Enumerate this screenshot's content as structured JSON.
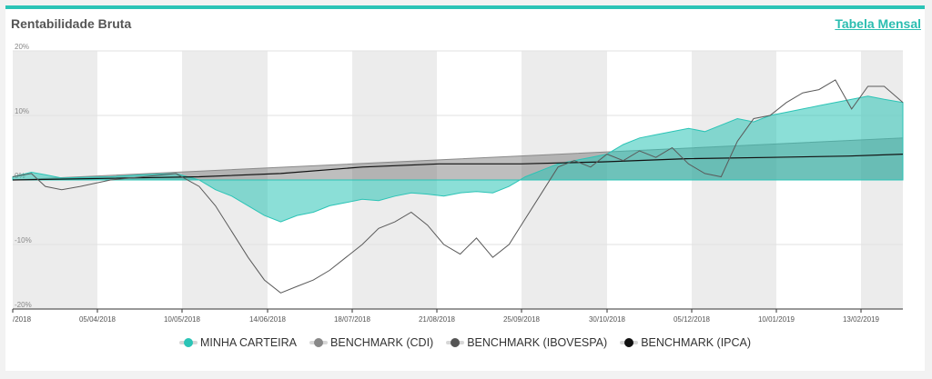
{
  "header": {
    "title": "Rentabilidade Bruta",
    "table_link": "Tabela Mensal"
  },
  "chart_data": {
    "type": "area",
    "title": "Rentabilidade Bruta",
    "xlabel": "",
    "ylabel": "",
    "ylim": [
      -20,
      20
    ],
    "xlim": [
      "2018-02-19",
      "2019-03-08"
    ],
    "x_tick_labels": [
      "/2018",
      "05/04/2018",
      "10/05/2018",
      "14/06/2018",
      "18/07/2018",
      "21/08/2018",
      "25/09/2018",
      "30/10/2018",
      "05/12/2018",
      "10/01/2019",
      "13/02/2019"
    ],
    "y_tick_labels": [
      "20%",
      "10%",
      "0%",
      "-10%",
      "-20%"
    ],
    "y_ticks": [
      20,
      10,
      0,
      -10,
      -20
    ],
    "grid": "alternating vertical bands + horizontal gridlines",
    "legend_position": "bottom-center",
    "series": [
      {
        "name": "MINHA CARTEIRA",
        "color": "#2bc4b6",
        "style": "area",
        "x": [
          "2018-02-19",
          "2018-02-27",
          "2018-03-05",
          "2018-03-12",
          "2018-03-20",
          "2018-04-02",
          "2018-04-16",
          "2018-04-30",
          "2018-05-10",
          "2018-05-17",
          "2018-05-24",
          "2018-05-31",
          "2018-06-07",
          "2018-06-14",
          "2018-06-21",
          "2018-06-28",
          "2018-07-05",
          "2018-07-12",
          "2018-07-19",
          "2018-07-26",
          "2018-08-02",
          "2018-08-09",
          "2018-08-16",
          "2018-08-23",
          "2018-08-30",
          "2018-09-06",
          "2018-09-13",
          "2018-09-20",
          "2018-09-27",
          "2018-10-04",
          "2018-10-11",
          "2018-10-18",
          "2018-10-25",
          "2018-11-01",
          "2018-11-08",
          "2018-11-15",
          "2018-11-22",
          "2018-11-29",
          "2018-12-06",
          "2018-12-13",
          "2018-12-20",
          "2018-12-27",
          "2019-01-03",
          "2019-01-10",
          "2019-01-17",
          "2019-01-24",
          "2019-01-31",
          "2019-02-07",
          "2019-02-14",
          "2019-02-21",
          "2019-02-28",
          "2019-03-08"
        ],
        "y": [
          0.5,
          1.2,
          0.8,
          0.3,
          0.4,
          0.5,
          0.8,
          1.0,
          0.0,
          -1.5,
          -2.5,
          -4.0,
          -5.5,
          -6.5,
          -5.5,
          -5.0,
          -4.0,
          -3.5,
          -3.0,
          -3.2,
          -2.5,
          -2.0,
          -2.2,
          -2.5,
          -2.0,
          -1.8,
          -2.0,
          -1.0,
          0.5,
          1.5,
          2.5,
          3.0,
          3.5,
          4.0,
          5.5,
          6.5,
          7.0,
          7.5,
          8.0,
          7.5,
          8.5,
          9.5,
          9.0,
          10.0,
          10.5,
          11.0,
          11.5,
          12.0,
          12.5,
          13.0,
          12.5,
          12.0
        ]
      },
      {
        "name": "BENCHMARK (CDI)",
        "color": "#888888",
        "style": "area",
        "x": [
          "2018-02-19",
          "2019-03-08"
        ],
        "y": [
          0.0,
          6.5
        ]
      },
      {
        "name": "BENCHMARK (IBOVESPA)",
        "color": "#555555",
        "style": "line",
        "x": [
          "2018-02-19",
          "2018-02-27",
          "2018-03-05",
          "2018-03-12",
          "2018-03-20",
          "2018-04-02",
          "2018-04-16",
          "2018-04-30",
          "2018-05-10",
          "2018-05-17",
          "2018-05-24",
          "2018-05-31",
          "2018-06-07",
          "2018-06-14",
          "2018-06-21",
          "2018-06-28",
          "2018-07-05",
          "2018-07-12",
          "2018-07-19",
          "2018-07-26",
          "2018-08-02",
          "2018-08-09",
          "2018-08-16",
          "2018-08-23",
          "2018-08-30",
          "2018-09-06",
          "2018-09-13",
          "2018-09-20",
          "2018-09-27",
          "2018-10-04",
          "2018-10-11",
          "2018-10-18",
          "2018-10-25",
          "2018-11-01",
          "2018-11-08",
          "2018-11-15",
          "2018-11-22",
          "2018-11-29",
          "2018-12-06",
          "2018-12-13",
          "2018-12-20",
          "2018-12-27",
          "2019-01-03",
          "2019-01-10",
          "2019-01-17",
          "2019-01-24",
          "2019-01-31",
          "2019-02-07",
          "2019-02-14",
          "2019-02-21",
          "2019-02-28",
          "2019-03-08"
        ],
        "y": [
          0.5,
          1.0,
          -1.0,
          -1.5,
          -1.0,
          0.0,
          0.5,
          1.0,
          -1.0,
          -4.0,
          -8.0,
          -12.0,
          -15.5,
          -17.5,
          -16.5,
          -15.5,
          -14.0,
          -12.0,
          -10.0,
          -7.5,
          -6.5,
          -5.0,
          -7.0,
          -10.0,
          -11.5,
          -9.0,
          -12.0,
          -10.0,
          -6.0,
          -2.0,
          2.0,
          3.0,
          2.0,
          4.0,
          3.0,
          4.5,
          3.5,
          5.0,
          2.5,
          1.0,
          0.5,
          6.0,
          9.5,
          10.0,
          12.0,
          13.5,
          14.0,
          15.5,
          11.0,
          14.5,
          14.5,
          12.0
        ]
      },
      {
        "name": "BENCHMARK (IPCA)",
        "color": "#111111",
        "style": "line",
        "x": [
          "2018-02-19",
          "2018-05-10",
          "2018-06-14",
          "2018-07-19",
          "2018-08-21",
          "2018-09-25",
          "2018-10-30",
          "2018-12-05",
          "2019-01-10",
          "2019-02-13",
          "2019-03-08"
        ],
        "y": [
          0.0,
          0.5,
          1.0,
          2.0,
          2.5,
          2.5,
          2.8,
          3.3,
          3.5,
          3.7,
          4.0
        ]
      }
    ]
  },
  "legend": {
    "items": [
      {
        "label": "MINHA CARTEIRA",
        "color": "#2bc4b6"
      },
      {
        "label": "BENCHMARK (CDI)",
        "color": "#888888"
      },
      {
        "label": "BENCHMARK (IBOVESPA)",
        "color": "#555555"
      },
      {
        "label": "BENCHMARK (IPCA)",
        "color": "#111111"
      }
    ]
  }
}
